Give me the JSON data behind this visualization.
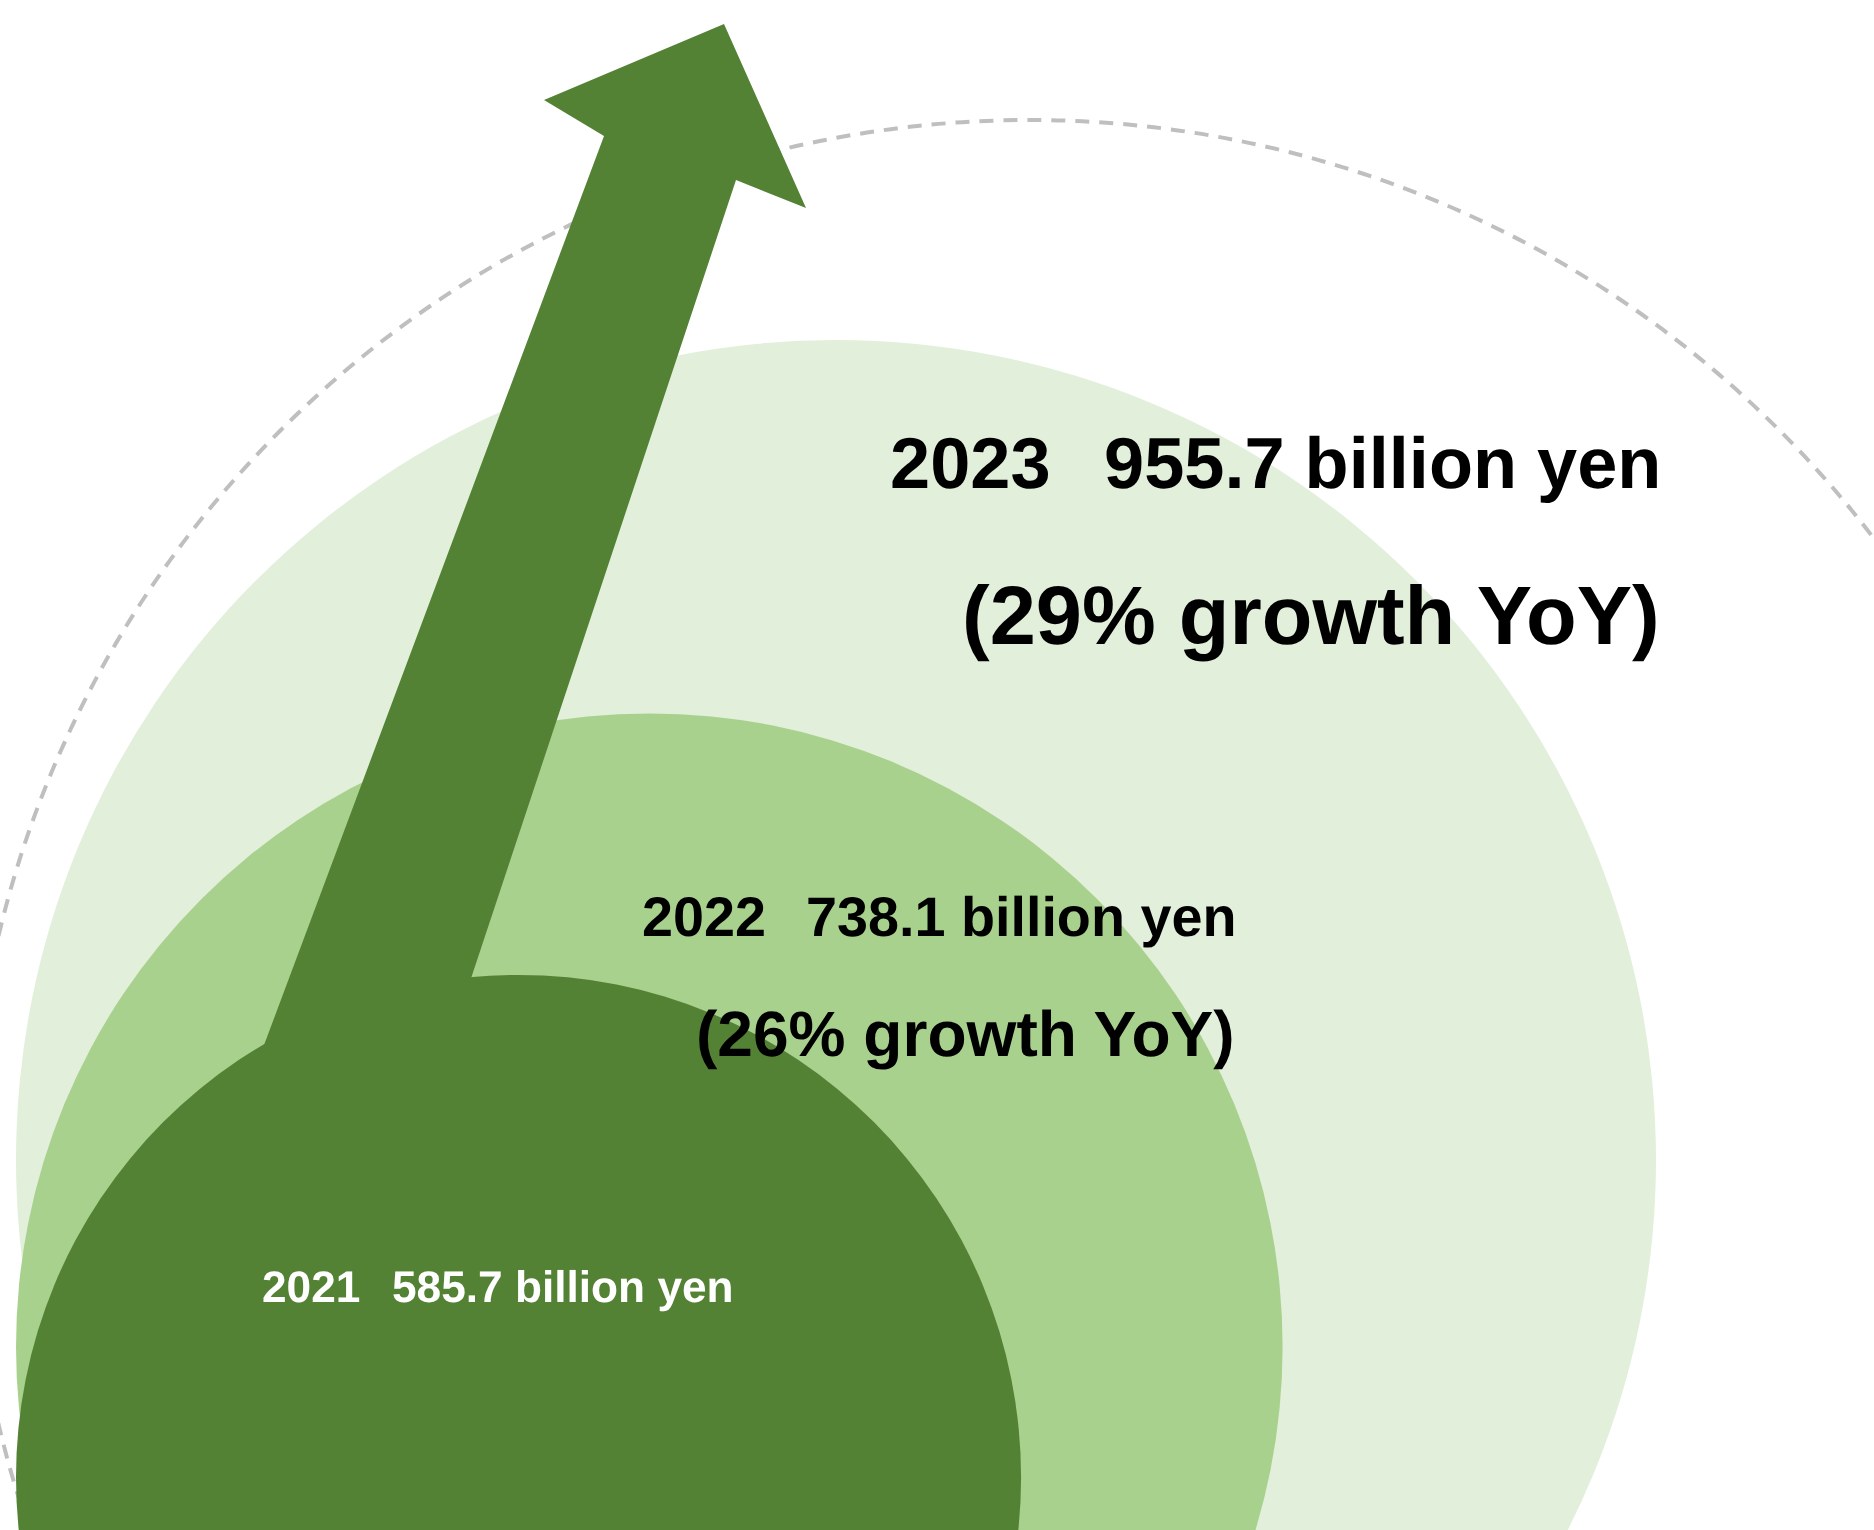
{
  "chart_data": {
    "type": "other",
    "categories": [
      "2021",
      "2022",
      "2023"
    ],
    "values": [
      585.7,
      738.1,
      955.7
    ],
    "value_labels": [
      "585.7 billion yen",
      "738.1 billion yen",
      "955.7 billion yen"
    ],
    "colors": [
      "#548235",
      "#a9d18e",
      "#e2efda"
    ],
    "annotations": [
      "(26% growth YoY)",
      "(29% growth YoY)"
    ]
  }
}
